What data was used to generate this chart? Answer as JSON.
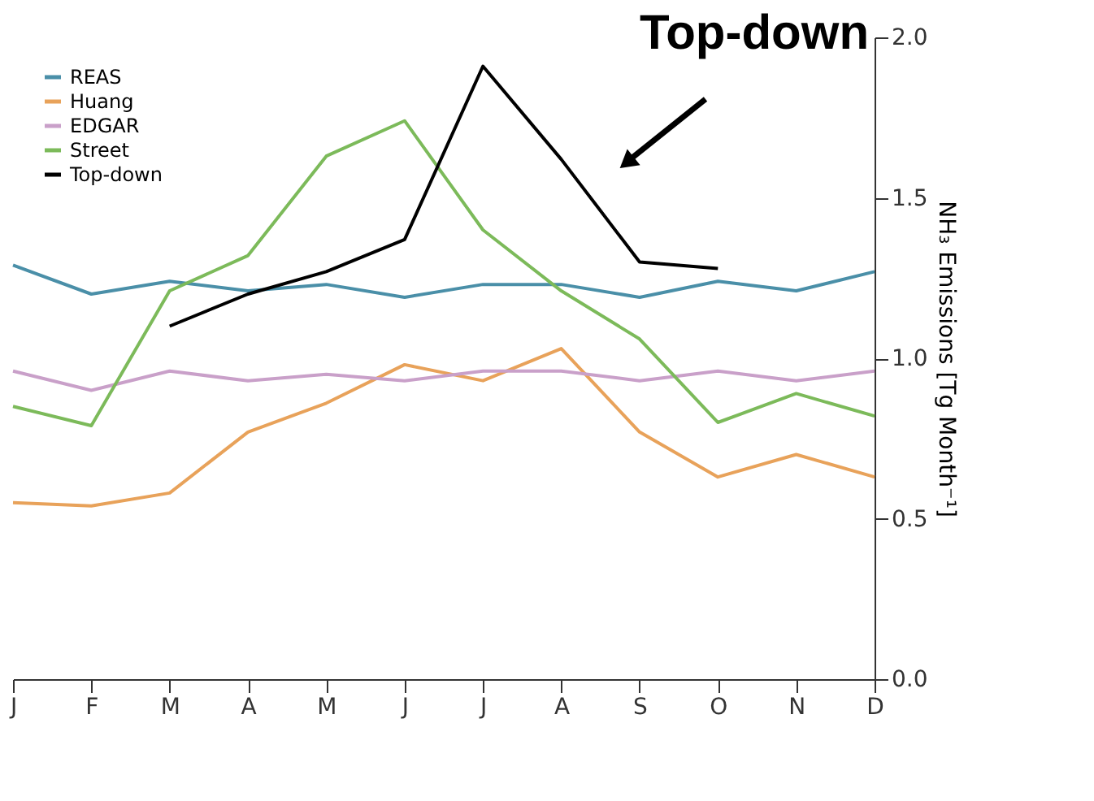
{
  "chart_data": {
    "type": "line",
    "ylabel": "NH₃ Emissions [Tg Month⁻¹]",
    "categories": [
      "J",
      "F",
      "M",
      "A",
      "M",
      "J",
      "J",
      "A",
      "S",
      "O",
      "N",
      "D"
    ],
    "ylim": [
      0,
      2.0
    ],
    "yticks": [
      {
        "value": 0,
        "label": "0.0"
      },
      0.5,
      {
        "value": 1,
        "label": "1.0"
      },
      1.5,
      {
        "value": 2,
        "label": "2.0"
      }
    ],
    "series": [
      {
        "name": "REAS",
        "color": "#4a8fa8",
        "values": [
          1.29,
          1.2,
          1.24,
          1.21,
          1.23,
          1.19,
          1.23,
          1.23,
          1.19,
          1.24,
          1.21,
          1.27
        ]
      },
      {
        "name": "Huang",
        "color": "#e8a25a",
        "values": [
          0.55,
          0.54,
          0.58,
          0.77,
          0.86,
          0.98,
          0.93,
          1.03,
          0.77,
          0.63,
          0.7,
          0.63
        ]
      },
      {
        "name": "EDGAR",
        "color": "#c9a0c9",
        "values": [
          0.96,
          0.9,
          0.96,
          0.93,
          0.95,
          0.93,
          0.96,
          0.96,
          0.93,
          0.96,
          0.93,
          0.96
        ]
      },
      {
        "name": "Street",
        "color": "#7cba5a",
        "values": [
          0.85,
          0.79,
          1.21,
          1.32,
          1.63,
          1.74,
          1.4,
          1.21,
          1.06,
          0.8,
          0.89,
          0.82
        ]
      },
      {
        "name": "Top-down",
        "color": "#000000",
        "values": [
          null,
          null,
          1.1,
          1.2,
          1.27,
          1.37,
          1.91,
          1.62,
          1.3,
          1.28,
          null,
          null
        ]
      }
    ],
    "annotations": [
      "Top-down"
    ],
    "legend": "top left",
    "grid": false
  }
}
